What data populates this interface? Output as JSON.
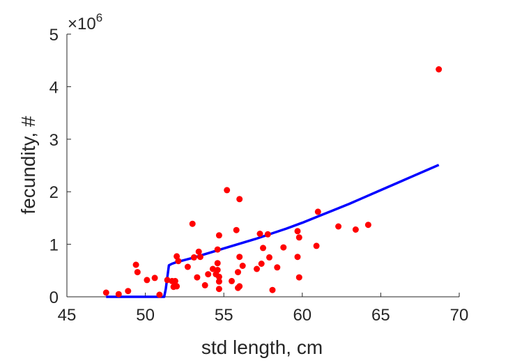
{
  "chart_data": {
    "type": "scatter",
    "title": "",
    "xlabel": "std length, cm",
    "ylabel": "fecundity, #",
    "xlim": [
      45,
      70
    ],
    "ylim": [
      0,
      5000000
    ],
    "x_ticks": [
      45,
      50,
      55,
      60,
      65,
      70
    ],
    "y_ticks": [
      0,
      1,
      2,
      3,
      4,
      5
    ],
    "y_multiplier_label": "×10",
    "y_multiplier_exponent": "6",
    "grid": false,
    "legend": "none",
    "series": [
      {
        "type": "scatter",
        "color": "#ff0000",
        "points": [
          [
            47.5,
            80000
          ],
          [
            48.3,
            50000
          ],
          [
            48.9,
            110000
          ],
          [
            49.4,
            610000
          ],
          [
            49.5,
            470000
          ],
          [
            50.1,
            320000
          ],
          [
            50.6,
            360000
          ],
          [
            50.9,
            40000
          ],
          [
            51.4,
            320000
          ],
          [
            51.7,
            300000
          ],
          [
            51.8,
            190000
          ],
          [
            51.9,
            300000
          ],
          [
            52.0,
            770000
          ],
          [
            52.0,
            200000
          ],
          [
            52.1,
            680000
          ],
          [
            52.7,
            570000
          ],
          [
            53.0,
            1390000
          ],
          [
            53.1,
            750000
          ],
          [
            53.3,
            370000
          ],
          [
            53.4,
            860000
          ],
          [
            53.5,
            760000
          ],
          [
            53.8,
            220000
          ],
          [
            54.0,
            430000
          ],
          [
            54.3,
            530000
          ],
          [
            54.5,
            430000
          ],
          [
            54.6,
            900000
          ],
          [
            54.6,
            640000
          ],
          [
            54.6,
            510000
          ],
          [
            54.7,
            380000
          ],
          [
            54.7,
            290000
          ],
          [
            54.7,
            150000
          ],
          [
            54.7,
            1170000
          ],
          [
            55.2,
            2030000
          ],
          [
            55.5,
            300000
          ],
          [
            55.8,
            1270000
          ],
          [
            55.9,
            470000
          ],
          [
            55.9,
            170000
          ],
          [
            56.0,
            1860000
          ],
          [
            56.0,
            760000
          ],
          [
            56.0,
            200000
          ],
          [
            56.2,
            590000
          ],
          [
            57.1,
            530000
          ],
          [
            57.3,
            1200000
          ],
          [
            57.4,
            630000
          ],
          [
            57.5,
            930000
          ],
          [
            57.8,
            1190000
          ],
          [
            57.9,
            750000
          ],
          [
            58.1,
            130000
          ],
          [
            58.4,
            560000
          ],
          [
            58.8,
            940000
          ],
          [
            59.7,
            1250000
          ],
          [
            59.7,
            760000
          ],
          [
            59.8,
            1130000
          ],
          [
            59.8,
            370000
          ],
          [
            60.9,
            970000
          ],
          [
            61.0,
            1620000
          ],
          [
            62.3,
            1340000
          ],
          [
            63.4,
            1280000
          ],
          [
            64.2,
            1370000
          ],
          [
            68.7,
            4330000
          ]
        ]
      },
      {
        "type": "line",
        "color": "#0000ff",
        "points": [
          [
            47.5,
            0
          ],
          [
            51.2,
            0
          ],
          [
            51.3,
            150000
          ],
          [
            51.5,
            600000
          ],
          [
            51.7,
            630000
          ],
          [
            52,
            660000
          ],
          [
            53,
            740000
          ],
          [
            54,
            830000
          ],
          [
            55,
            920000
          ],
          [
            56,
            1010000
          ],
          [
            57,
            1100000
          ],
          [
            58,
            1200000
          ],
          [
            59,
            1300000
          ],
          [
            60,
            1410000
          ],
          [
            61,
            1530000
          ],
          [
            62,
            1650000
          ],
          [
            63,
            1770000
          ],
          [
            64,
            1900000
          ],
          [
            65,
            2030000
          ],
          [
            66,
            2160000
          ],
          [
            67,
            2290000
          ],
          [
            68,
            2420000
          ],
          [
            68.7,
            2510000
          ]
        ]
      }
    ]
  }
}
